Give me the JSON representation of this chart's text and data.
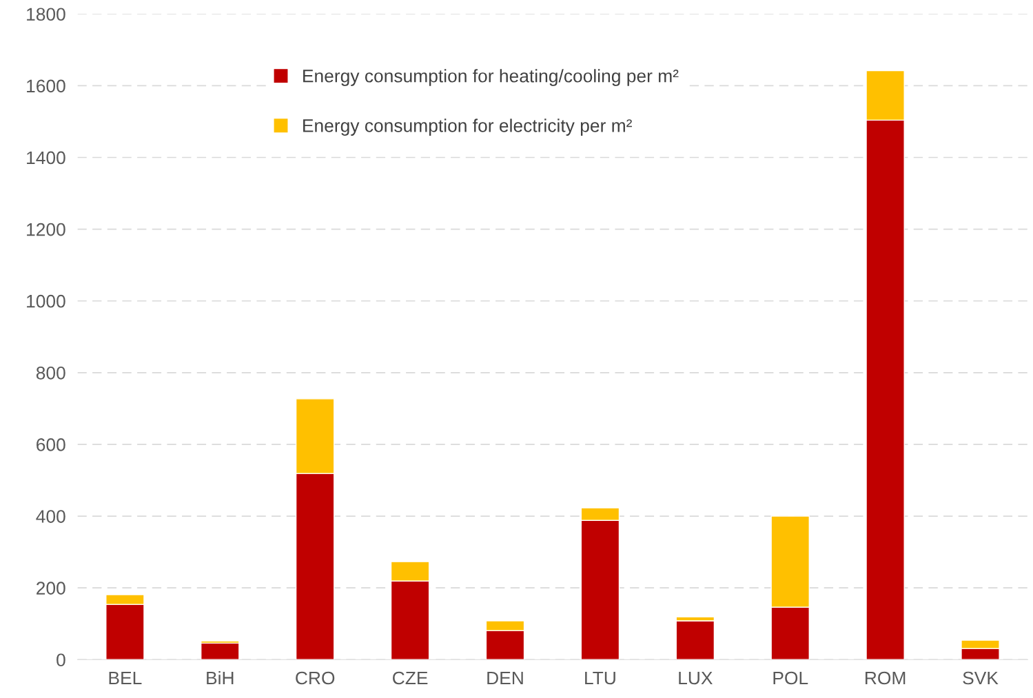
{
  "chart_data": {
    "type": "bar",
    "stacked": true,
    "categories": [
      "BEL",
      "BiH",
      "CRO",
      "CZE",
      "DEN",
      "LTU",
      "LUX",
      "POL",
      "ROM",
      "SVK"
    ],
    "series": [
      {
        "name": "Energy consumption for heating/cooling per m²",
        "color": "#c00000",
        "values": [
          154,
          46,
          519,
          219,
          81,
          388,
          108,
          146,
          1504,
          31
        ]
      },
      {
        "name": "Energy consumption for electricity per m²",
        "color": "#ffc000",
        "values": [
          27,
          6,
          208,
          54,
          27,
          35,
          11,
          254,
          138,
          23
        ]
      }
    ],
    "ylim": [
      0,
      1800
    ],
    "yticks": [
      0,
      200,
      400,
      600,
      800,
      1000,
      1200,
      1400,
      1600,
      1800
    ],
    "grid": "y",
    "legend": "top"
  }
}
